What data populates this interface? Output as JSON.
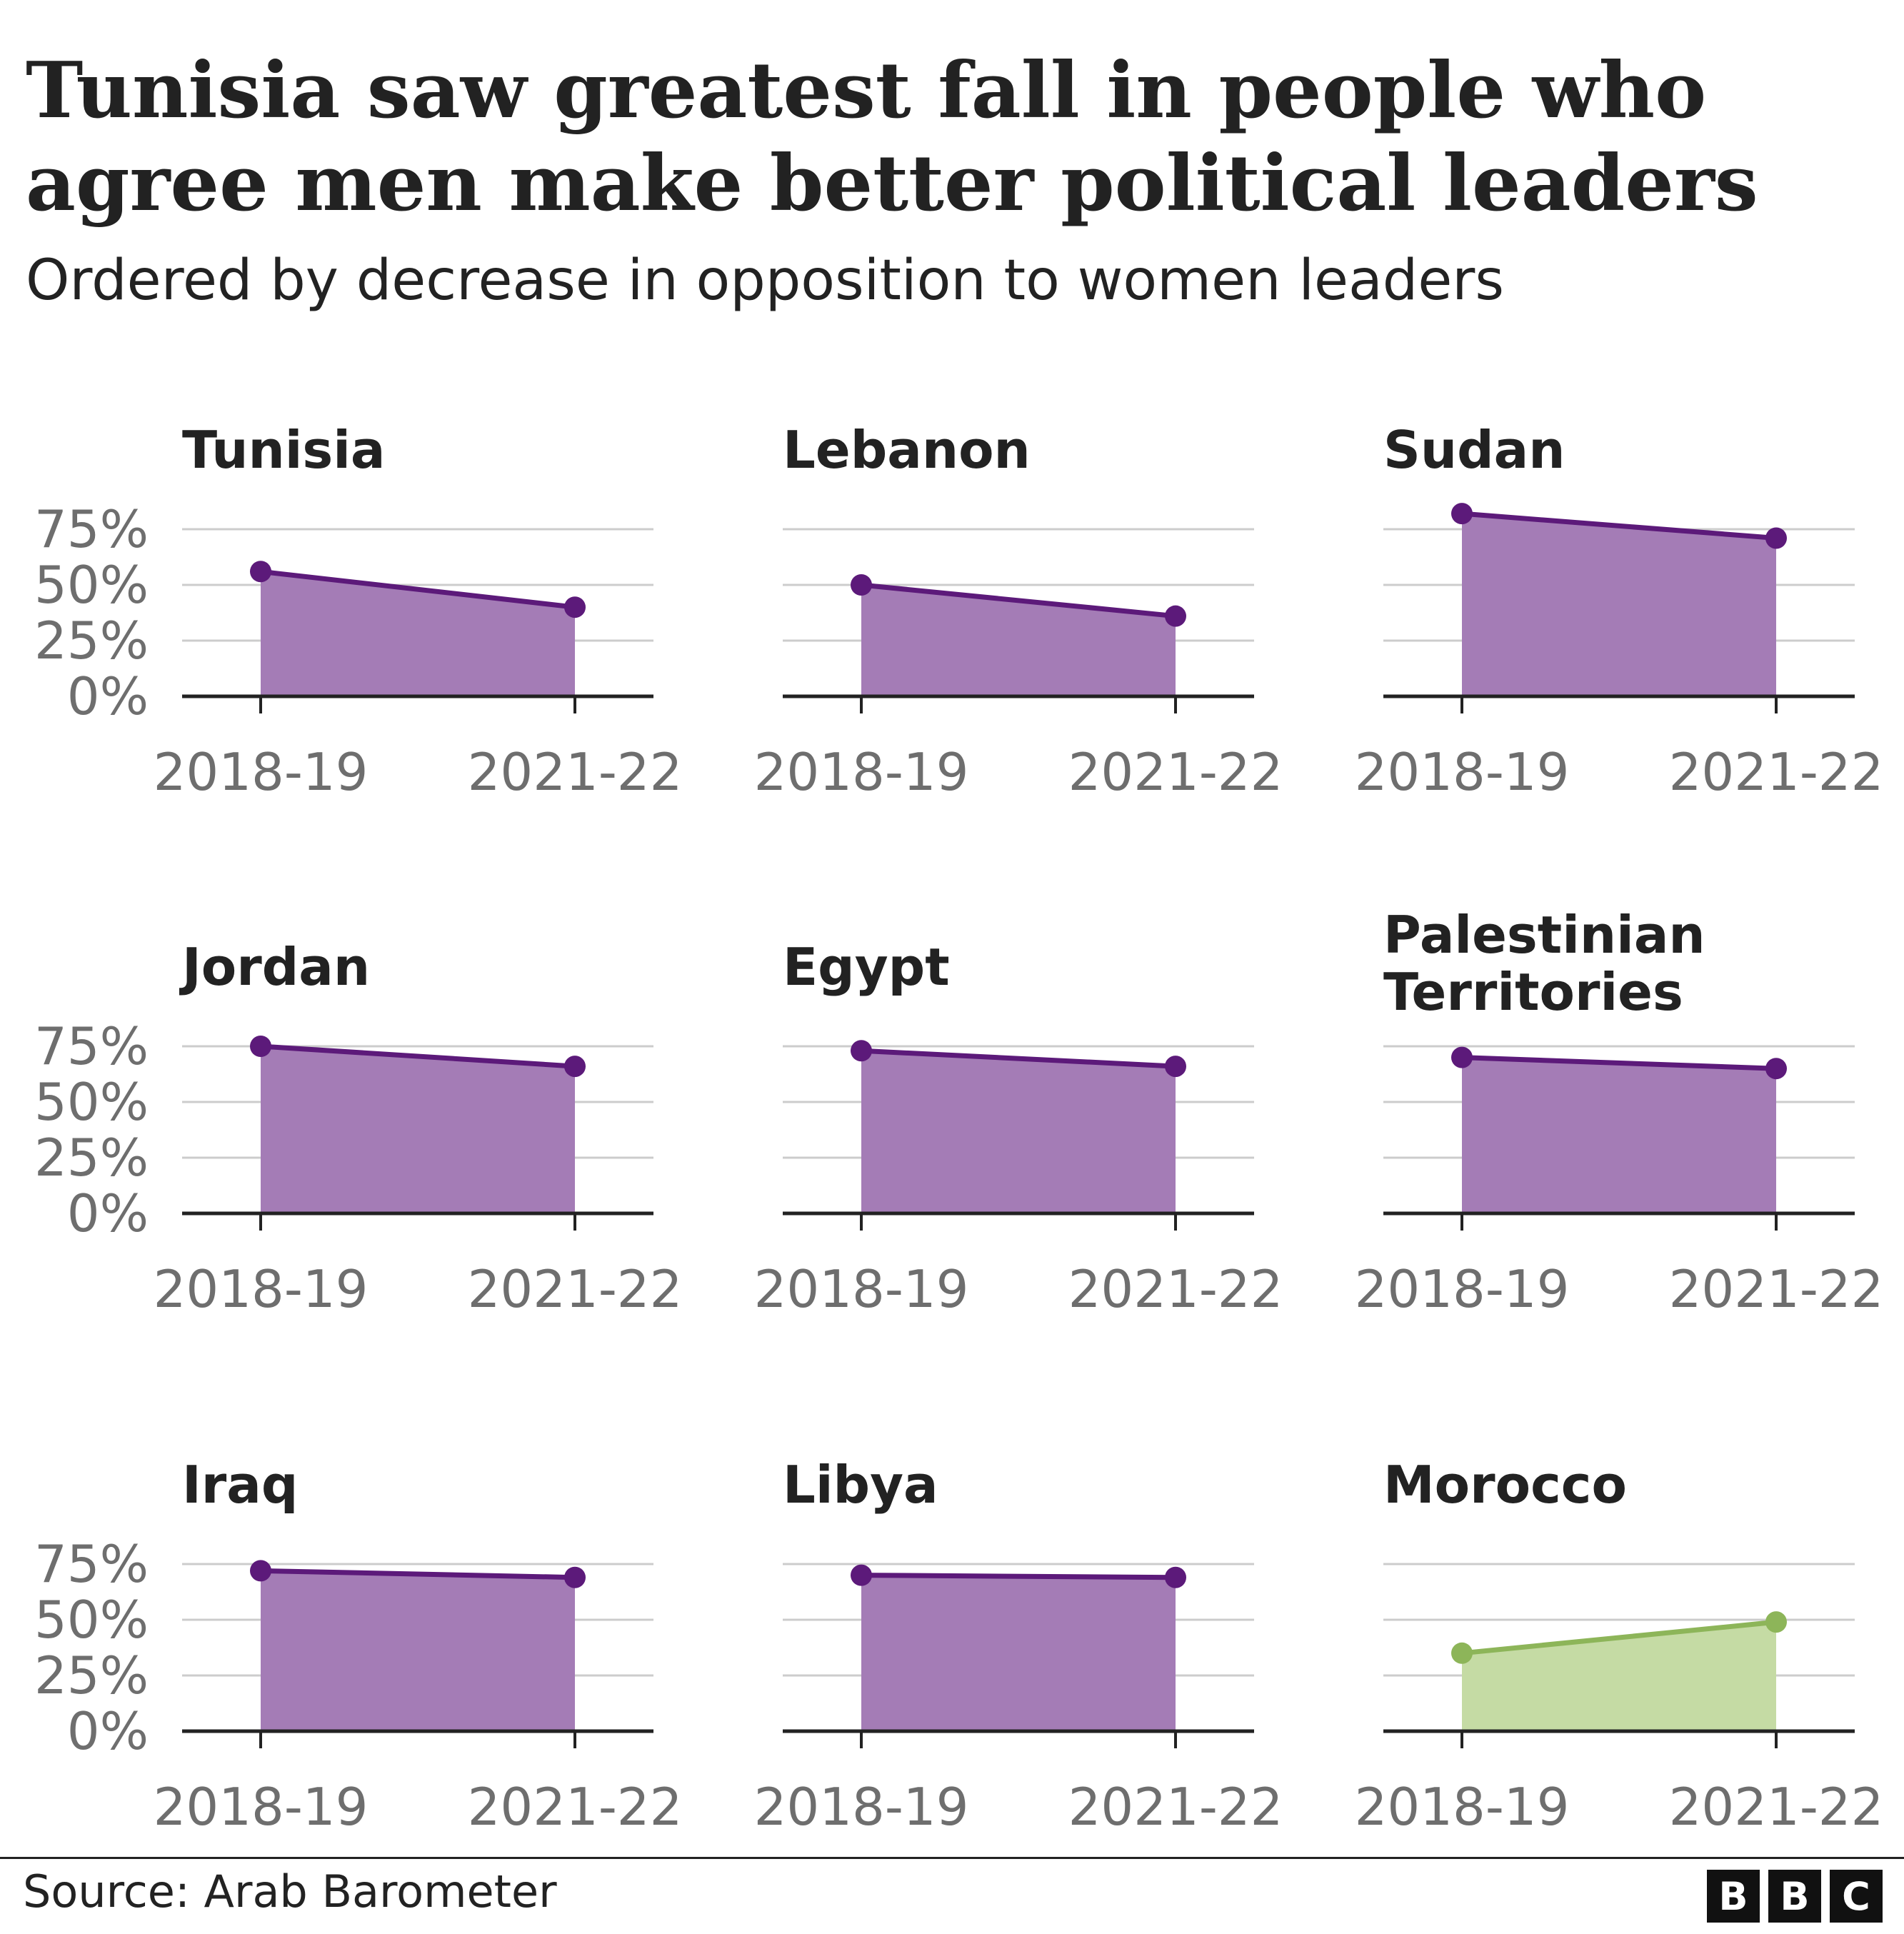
{
  "title": "Tunisia saw greatest fall in people who agree men make better political leaders",
  "subtitle": "Ordered by decrease in opposition to women leaders",
  "source": "Source: Arab Barometer",
  "logo": [
    "B",
    "B",
    "C"
  ],
  "colors": {
    "decline_line": "#5c1a7a",
    "decline_fill": "#a47cb6",
    "increase_line": "#8db559",
    "increase_fill": "#c5dba4",
    "grid": "#cccccc",
    "axis": "#222222"
  },
  "chart_data": {
    "type": "area",
    "small_multiples": true,
    "x": [
      "2018-19",
      "2021-22"
    ],
    "yticks": [
      "0%",
      "25%",
      "50%",
      "75%"
    ],
    "ylim": [
      0,
      75
    ],
    "panels": [
      {
        "name": "Tunisia",
        "values": [
          56,
          40
        ],
        "trend": "decrease"
      },
      {
        "name": "Lebanon",
        "values": [
          50,
          36
        ],
        "trend": "decrease"
      },
      {
        "name": "Sudan",
        "values": [
          82,
          71
        ],
        "trend": "decrease"
      },
      {
        "name": "Jordan",
        "values": [
          75,
          66
        ],
        "trend": "decrease"
      },
      {
        "name": "Egypt",
        "values": [
          73,
          66
        ],
        "trend": "decrease"
      },
      {
        "name": "Palestinian Territories",
        "values": [
          70,
          65
        ],
        "trend": "decrease"
      },
      {
        "name": "Iraq",
        "values": [
          72,
          69
        ],
        "trend": "decrease"
      },
      {
        "name": "Libya",
        "values": [
          70,
          69
        ],
        "trend": "decrease"
      },
      {
        "name": "Morocco",
        "values": [
          35,
          49
        ],
        "trend": "increase"
      }
    ]
  }
}
